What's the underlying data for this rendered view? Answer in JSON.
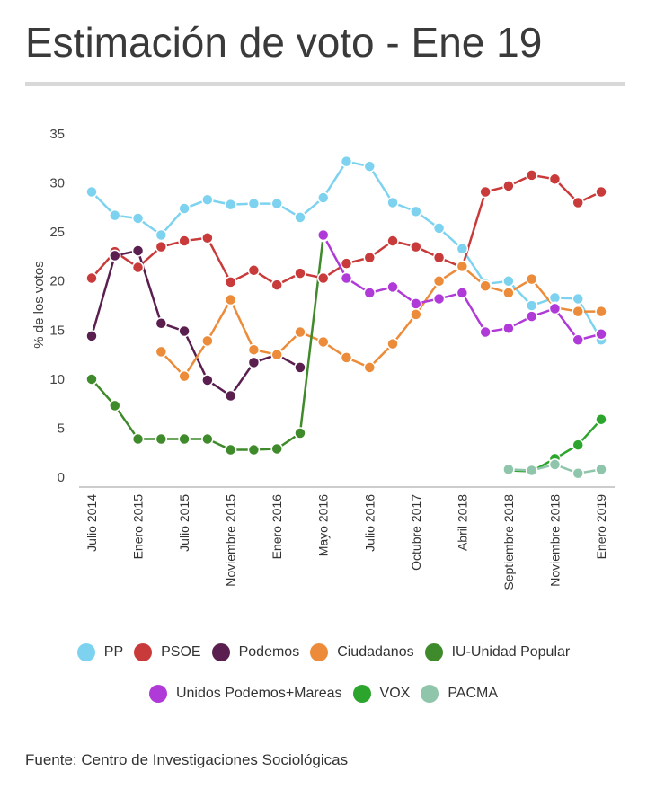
{
  "title": "Estimación de voto - Ene 19",
  "source": "Fuente: Centro de Investigaciones Sociológicas",
  "chart_data": {
    "type": "line",
    "title": "Estimación de voto - Ene 19",
    "xlabel": "",
    "ylabel": "% de los votos",
    "ylim": [
      0,
      35
    ],
    "yticks": [
      0,
      5,
      10,
      15,
      20,
      25,
      30,
      35
    ],
    "grid": false,
    "legend_position": "bottom",
    "categories": [
      "Julio 2014",
      "",
      "Enero 2015",
      "",
      "Julio 2015",
      "",
      "Noviembre 2015",
      "",
      "Enero 2016",
      "",
      "Mayo 2016",
      "",
      "Julio 2016",
      "",
      "Octubre 2017",
      "",
      "Abril 2018",
      "",
      "Septiembre 2018",
      "",
      "Noviembre 2018",
      "",
      "Enero 2019"
    ],
    "series": [
      {
        "name": "PP",
        "color": "#7dd3ef",
        "values": [
          29.0,
          26.6,
          26.3,
          24.6,
          27.3,
          28.2,
          27.7,
          27.8,
          27.8,
          26.4,
          28.4,
          32.1,
          31.6,
          27.9,
          27.0,
          25.3,
          23.2,
          19.6,
          19.9,
          17.4,
          18.2,
          18.1,
          13.9
        ]
      },
      {
        "name": "PSOE",
        "color": "#c93a3a",
        "values": [
          20.2,
          22.9,
          21.3,
          23.4,
          24.0,
          24.3,
          19.8,
          21.0,
          19.5,
          20.7,
          20.2,
          21.7,
          22.3,
          24.0,
          23.4,
          22.3,
          21.3,
          29.0,
          29.6,
          30.7,
          30.3,
          27.9,
          29.0
        ]
      },
      {
        "name": "Podemos",
        "color": "#5a1f4f",
        "values": [
          14.3,
          22.5,
          23.0,
          15.6,
          14.8,
          9.8,
          8.2,
          11.6,
          12.4,
          11.1,
          null,
          null,
          null,
          null,
          null,
          null,
          null,
          null,
          null,
          null,
          null,
          null,
          null
        ]
      },
      {
        "name": "Ciudadanos",
        "color": "#ec8c3a",
        "values": [
          null,
          null,
          null,
          12.7,
          10.2,
          13.8,
          18.0,
          12.9,
          12.4,
          14.7,
          13.7,
          12.1,
          11.1,
          13.5,
          16.5,
          19.9,
          21.4,
          19.4,
          18.7,
          20.1,
          17.2,
          16.8,
          16.8
        ]
      },
      {
        "name": "IU-Unidad Popular",
        "color": "#3f8a2a",
        "values": [
          9.9,
          7.2,
          3.8,
          3.8,
          3.8,
          3.8,
          2.7,
          2.7,
          2.8,
          4.4,
          24.5,
          null,
          null,
          null,
          null,
          null,
          null,
          null,
          null,
          null,
          null,
          null,
          null
        ]
      },
      {
        "name": "Unidos Podemos+Mareas",
        "color": "#b03ad8",
        "values": [
          null,
          null,
          null,
          null,
          null,
          null,
          null,
          null,
          null,
          null,
          24.6,
          20.2,
          18.7,
          19.3,
          17.6,
          18.1,
          18.7,
          14.7,
          15.1,
          16.3,
          17.1,
          13.9,
          14.5
        ]
      },
      {
        "name": "VOX",
        "color": "#2ca52c",
        "values": [
          null,
          null,
          null,
          null,
          null,
          null,
          null,
          null,
          null,
          null,
          null,
          null,
          null,
          null,
          null,
          null,
          null,
          null,
          0.6,
          0.5,
          1.8,
          3.2,
          5.8
        ]
      },
      {
        "name": "PACMA",
        "color": "#8fc6ab",
        "values": [
          null,
          null,
          null,
          null,
          null,
          null,
          null,
          null,
          null,
          null,
          null,
          null,
          null,
          null,
          null,
          null,
          null,
          null,
          0.7,
          0.6,
          1.2,
          0.3,
          0.7
        ]
      }
    ]
  },
  "legend_rows": [
    [
      0,
      1,
      2,
      3,
      4
    ],
    [
      5,
      6,
      7
    ]
  ]
}
